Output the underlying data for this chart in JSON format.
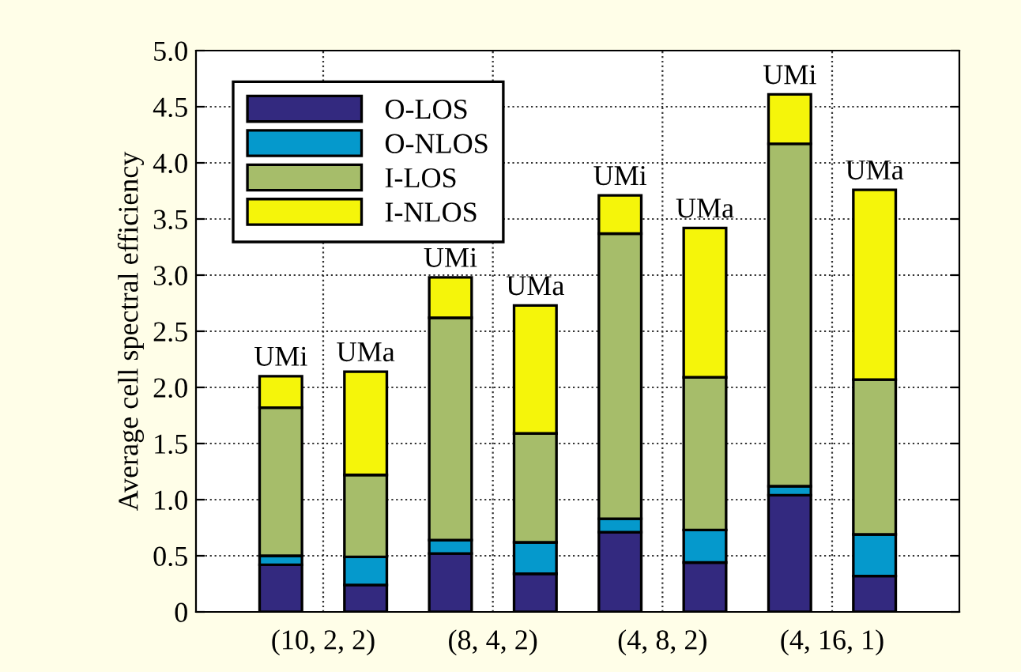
{
  "chart_data": {
    "type": "bar",
    "stacked": true,
    "ylabel": "Average cell spectral efficiency",
    "categories": [
      null,
      null,
      null,
      null,
      null,
      null,
      null,
      null
    ],
    "ylim": [
      0,
      5
    ],
    "yticks": [
      0,
      {
        "value": 0.5,
        "label": "0.5"
      },
      {
        "value": 1,
        "label": "1.0"
      },
      {
        "value": 1.5,
        "label": "1.5"
      },
      {
        "value": 2,
        "label": "2.0"
      },
      {
        "value": 2.5,
        "label": "2.5"
      },
      {
        "value": 3,
        "label": "3.0"
      },
      {
        "value": 3.5,
        "label": "3.5"
      },
      {
        "value": 4,
        "label": "4.0"
      },
      {
        "value": 4.5,
        "label": "4.5"
      },
      {
        "value": 5,
        "label": "5.0"
      }
    ],
    "grid": true,
    "legend": "top left",
    "series": [
      {
        "name": "O-LOS",
        "color": "#33297f",
        "values": [
          0.42,
          0.24,
          0.52,
          0.34,
          0.71,
          0.44,
          1.04,
          0.32
        ]
      },
      {
        "name": "O-NLOS",
        "color": "#0599cc",
        "values": [
          0.08,
          0.25,
          0.12,
          0.28,
          0.12,
          0.29,
          0.08,
          0.37
        ]
      },
      {
        "name": "I-LOS",
        "color": "#a6bd6a",
        "values": [
          1.32,
          0.73,
          1.98,
          0.97,
          2.54,
          1.36,
          3.05,
          1.38
        ]
      },
      {
        "name": "I-NLOS",
        "color": "#f5f50a",
        "values": [
          0.28,
          0.92,
          0.36,
          1.14,
          0.34,
          1.33,
          0.44,
          1.69
        ]
      }
    ],
    "annotations": [
      {
        "text": "UMi",
        "y": 2.1
      },
      {
        "text": "UMa",
        "y": 2.14
      },
      {
        "text": "UMi",
        "y": 2.98
      },
      {
        "text": "UMa",
        "y": 2.73
      },
      {
        "text": "UMi",
        "y": 3.71
      },
      {
        "text": "UMa",
        "y": 3.42
      },
      {
        "text": "UMi",
        "y": 4.61
      },
      {
        "text": "UMa",
        "y": 3.76
      },
      "(10, 2, 2)",
      "(8, 4, 2)",
      "(4, 8, 2)",
      "(4, 16, 1)"
    ]
  }
}
